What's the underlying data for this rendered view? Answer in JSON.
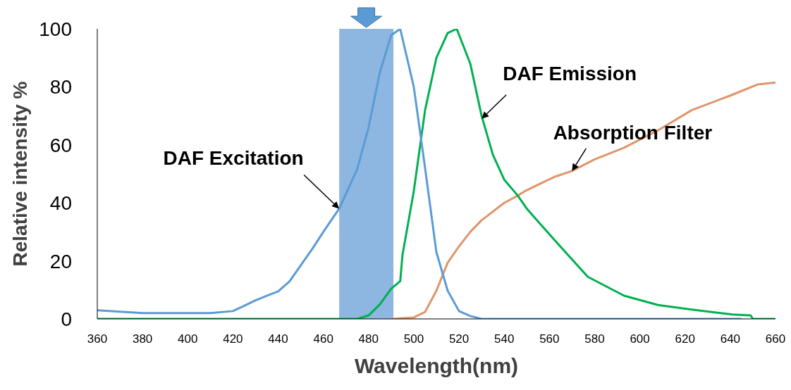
{
  "chart_data": {
    "type": "line",
    "xlabel": "Wavelength(nm)",
    "ylabel": "Relative intensity %",
    "xlim": [
      360,
      660
    ],
    "xticks": [
      360,
      380,
      400,
      420,
      440,
      460,
      480,
      500,
      520,
      540,
      560,
      580,
      600,
      620,
      640,
      660
    ],
    "ylim": [
      0,
      100
    ],
    "yticks": [
      0,
      20,
      40,
      60,
      80,
      100
    ],
    "grid": false,
    "line_style": "solid",
    "bands": [
      {
        "axis": "x",
        "from": 467,
        "to": 491,
        "color": "#8db6e0"
      }
    ],
    "annotations": [
      {
        "text": "DAF Excitation",
        "x": 467,
        "y": 38
      },
      {
        "text": "DAF Emission",
        "x": 530,
        "y": 69
      },
      {
        "text": "Absorption Filter",
        "x": 570,
        "y": 51
      }
    ],
    "series": [
      {
        "color": "#e0956a",
        "x": [
          490,
          500,
          505,
          510,
          515,
          520,
          525,
          530,
          540,
          546,
          550,
          562,
          570,
          580,
          593,
          608,
          623,
          640,
          652,
          660
        ],
        "values": [
          0,
          0.5,
          2.4,
          9.7,
          19.4,
          25,
          30,
          34,
          40,
          42.5,
          44.4,
          48.9,
          51,
          55,
          59,
          65,
          72,
          77,
          80.8,
          81.5
        ]
      },
      {
        "color": "#00b050",
        "x": [
          360,
          400,
          450,
          475,
          480,
          485,
          490,
          494,
          495,
          500,
          505,
          510,
          515,
          519,
          525,
          530,
          535,
          540,
          546,
          550,
          562,
          570,
          577,
          593,
          608,
          623,
          641,
          649,
          650,
          660
        ],
        "values": [
          0,
          0,
          0,
          0,
          1.2,
          5,
          10.4,
          13,
          22,
          44,
          72,
          90,
          98.6,
          100,
          88,
          70,
          56.6,
          48,
          42.5,
          38,
          27.4,
          20.5,
          14.5,
          8,
          4.8,
          3.2,
          1.5,
          1.2,
          0,
          0
        ]
      },
      {
        "color": "#5b9bd5",
        "x": [
          360,
          370,
          380,
          390,
          400,
          410,
          420,
          425,
          430,
          435,
          440,
          445,
          450,
          455,
          460,
          467,
          475,
          480,
          485,
          490,
          494,
          500,
          505,
          510,
          515,
          520,
          525,
          530,
          560,
          600,
          645
        ],
        "values": [
          3,
          2.5,
          2,
          2,
          2,
          2,
          2.7,
          4.5,
          6.4,
          8,
          9.5,
          12.9,
          18.5,
          24,
          30,
          38,
          51.7,
          66,
          85,
          97.8,
          100,
          80,
          52,
          23,
          9.7,
          2.7,
          1,
          0,
          0,
          0,
          0
        ]
      }
    ]
  }
}
